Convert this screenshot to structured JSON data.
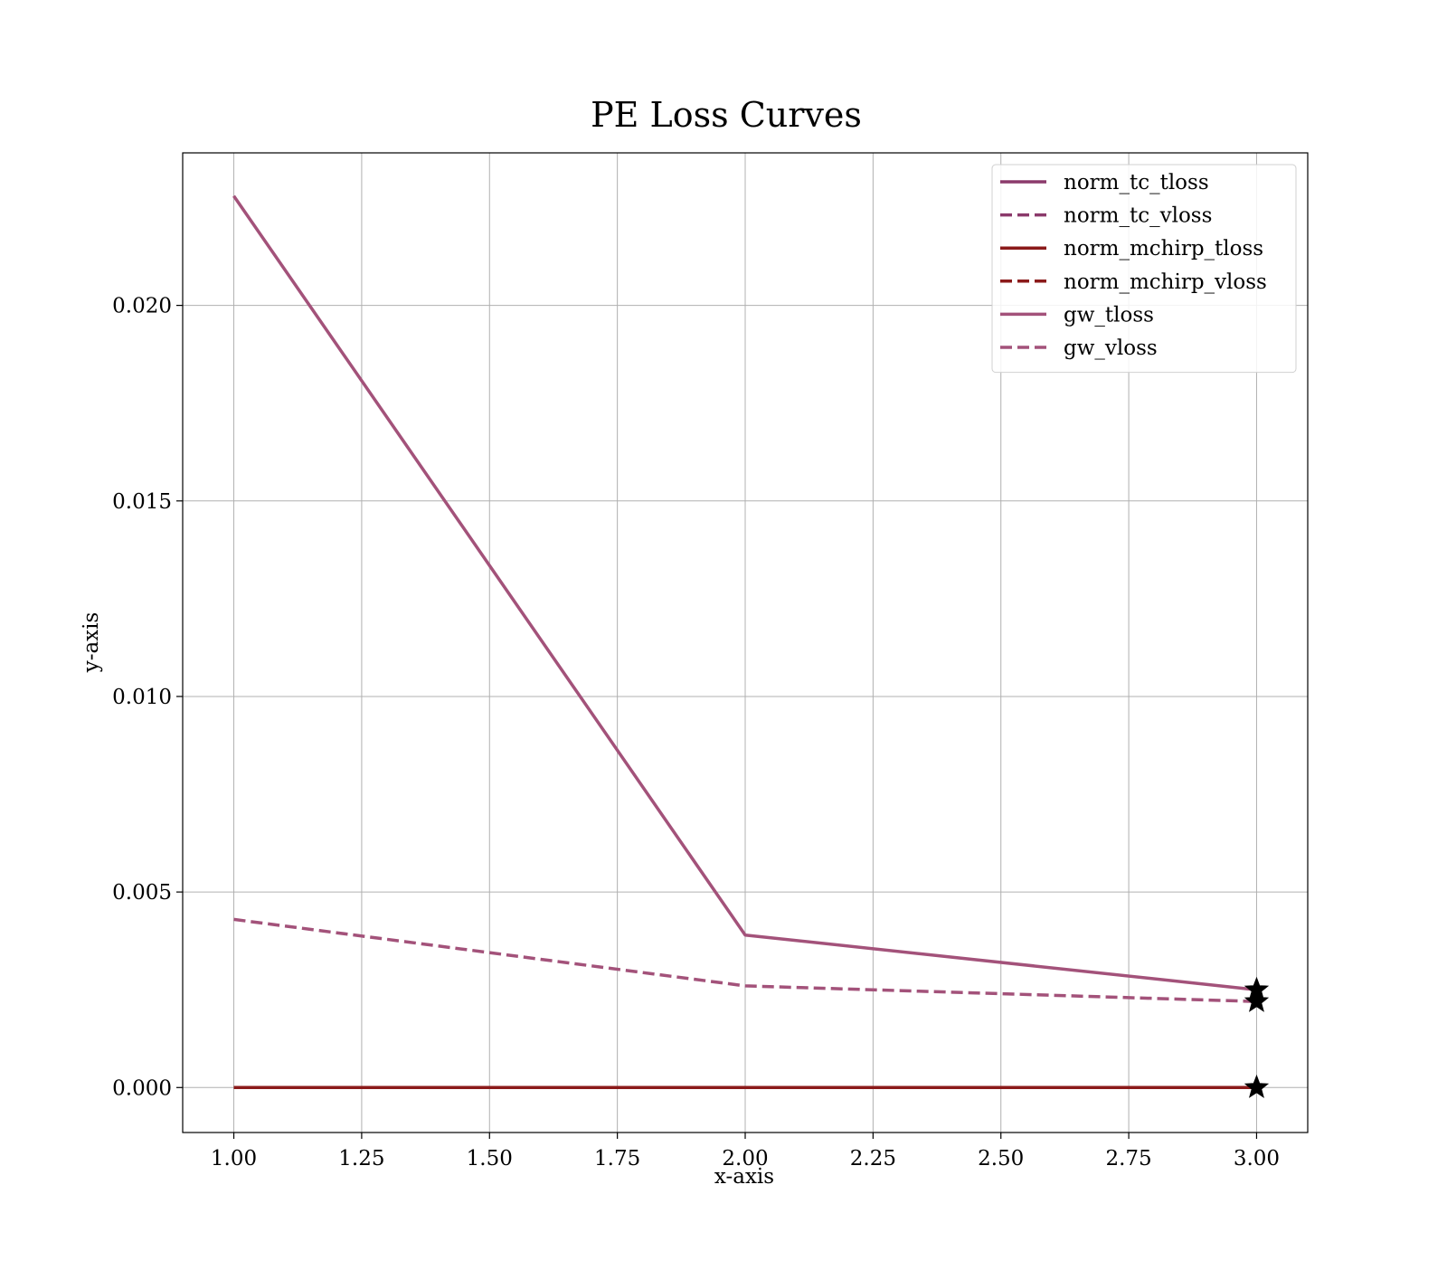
{
  "chart_data": {
    "type": "line",
    "title": "PE Loss Curves",
    "xlabel": "x-axis",
    "ylabel": "y-axis",
    "xlim": [
      0.9,
      3.1
    ],
    "ylim": [
      -0.00115,
      0.0239
    ],
    "x_ticks": [
      {
        "value": 1.0,
        "label": "1.00"
      },
      {
        "value": 1.25,
        "label": "1.25"
      },
      {
        "value": 1.5,
        "label": "1.50"
      },
      {
        "value": 1.75,
        "label": "1.75"
      },
      {
        "value": 2.0,
        "label": "2.00"
      },
      {
        "value": 2.25,
        "label": "2.25"
      },
      {
        "value": 2.5,
        "label": "2.50"
      },
      {
        "value": 2.75,
        "label": "2.75"
      },
      {
        "value": 3.0,
        "label": "3.00"
      }
    ],
    "y_ticks": [
      {
        "value": 0.0,
        "label": "0.000"
      },
      {
        "value": 0.005,
        "label": "0.005"
      },
      {
        "value": 0.01,
        "label": "0.010"
      },
      {
        "value": 0.015,
        "label": "0.015"
      },
      {
        "value": 0.02,
        "label": "0.020"
      }
    ],
    "grid": true,
    "legend_position": "top-right",
    "x": [
      1,
      2,
      3
    ],
    "series": [
      {
        "name": "norm_tc_tloss",
        "values": [
          0.0,
          0.0,
          0.0
        ],
        "color": "#8b3a6b",
        "dashed": false
      },
      {
        "name": "norm_tc_vloss",
        "values": [
          0.0,
          0.0,
          0.0
        ],
        "color": "#8b3a6b",
        "dashed": true
      },
      {
        "name": "norm_mchirp_tloss",
        "values": [
          0.0,
          0.0,
          0.0
        ],
        "color": "#8b1a1a",
        "dashed": false
      },
      {
        "name": "norm_mchirp_vloss",
        "values": [
          0.0,
          0.0,
          0.0
        ],
        "color": "#8b1a1a",
        "dashed": true
      },
      {
        "name": "gw_tloss",
        "values": [
          0.0228,
          0.0039,
          0.0025
        ],
        "color": "#a3527a",
        "dashed": false
      },
      {
        "name": "gw_vloss",
        "values": [
          0.0043,
          0.0026,
          0.0022
        ],
        "color": "#a3527a",
        "dashed": true
      }
    ],
    "markers": [
      {
        "x": 3,
        "y": 0.0025,
        "symbol": "star",
        "color": "#000000"
      },
      {
        "x": 3,
        "y": 0.0022,
        "symbol": "star",
        "color": "#000000"
      },
      {
        "x": 3,
        "y": 0.0,
        "symbol": "star",
        "color": "#000000"
      }
    ]
  }
}
